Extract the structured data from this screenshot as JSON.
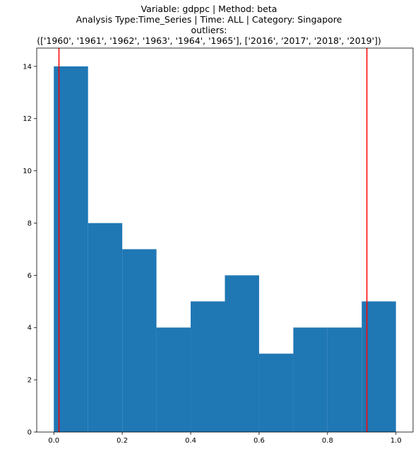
{
  "chart_data": {
    "type": "bar",
    "title_lines": [
      "Variable: gdppc | Method: beta",
      "Analysis Type:Time_Series | Time: ALL | Category: Singapore",
      "outliers:",
      "(['1960', '1961', '1962', '1963', '1964', '1965'], ['2016', '2017', '2018', '2019'])"
    ],
    "xlabel": "",
    "ylabel": "",
    "xlim": [
      -0.05,
      1.05
    ],
    "ylim": [
      0,
      14.7
    ],
    "bin_edges": [
      0.0,
      0.1,
      0.2,
      0.3,
      0.4,
      0.5,
      0.6,
      0.7,
      0.8,
      0.9,
      1.0
    ],
    "values": [
      14,
      8,
      7,
      4,
      5,
      6,
      3,
      4,
      4,
      5
    ],
    "bar_color": "#1f77b4",
    "vlines": [
      {
        "x": 0.015,
        "color": "#ff0000"
      },
      {
        "x": 0.915,
        "color": "#ff0000"
      }
    ],
    "xticks": [
      {
        "value": 0.0,
        "label": "0.0"
      },
      {
        "value": 0.2,
        "label": "0.2"
      },
      {
        "value": 0.4,
        "label": "0.4"
      },
      {
        "value": 0.6,
        "label": "0.6"
      },
      {
        "value": 0.8,
        "label": "0.8"
      },
      {
        "value": 1.0,
        "label": "1.0"
      }
    ],
    "yticks": [
      {
        "value": 0,
        "label": "0"
      },
      {
        "value": 2,
        "label": "2"
      },
      {
        "value": 4,
        "label": "4"
      },
      {
        "value": 6,
        "label": "6"
      },
      {
        "value": 8,
        "label": "8"
      },
      {
        "value": 10,
        "label": "10"
      },
      {
        "value": 12,
        "label": "12"
      },
      {
        "value": 14,
        "label": "14"
      }
    ],
    "grid": false,
    "legend": "none"
  }
}
